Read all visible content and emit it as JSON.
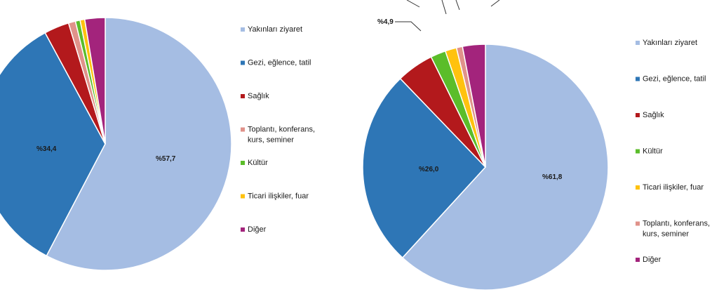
{
  "colors": {
    "yakinlari_ziyaret": "#a5bde3",
    "gezi": "#2e76b6",
    "saglik": "#b3191c",
    "toplanti": "#e0928a",
    "kultur": "#5bbd2a",
    "ticari": "#ffc20e",
    "diger": "#a3247c"
  },
  "chart_data": [
    {
      "type": "pie",
      "slices": [
        {
          "label": "Yakınları ziyaret",
          "value": 57.7,
          "color_key": "yakinlari_ziyaret",
          "data_label": "%57,7"
        },
        {
          "label": "Gezi, eğlence, tatil",
          "value": 34.4,
          "color_key": "gezi",
          "data_label": "%34,4"
        },
        {
          "label": "Sağlık",
          "value": 3.2,
          "color_key": "saglik",
          "data_label": ""
        },
        {
          "label": "Toplantı, konferans, kurs, seminer",
          "value": 0.9,
          "color_key": "toplanti",
          "data_label": ""
        },
        {
          "label": "Kültür",
          "value": 0.6,
          "color_key": "kultur",
          "data_label": ""
        },
        {
          "label": "Ticari ilişkiler, fuar",
          "value": 0.6,
          "color_key": "ticari",
          "data_label": ""
        },
        {
          "label": "Diğer",
          "value": 2.6,
          "color_key": "diger",
          "data_label": ""
        }
      ],
      "legend": {
        "placement": "right",
        "items": [
          {
            "label_lines": [
              "Yakınları ziyaret"
            ],
            "color_key": "yakinlari_ziyaret"
          },
          {
            "label_lines": [
              "Gezi, eğlence, tatil"
            ],
            "color_key": "gezi"
          },
          {
            "label_lines": [
              "Sağlık"
            ],
            "color_key": "saglik"
          },
          {
            "label_lines": [
              "Toplantı, konferans,",
              "kurs, seminer"
            ],
            "color_key": "toplanti"
          },
          {
            "label_lines": [
              "Kültür"
            ],
            "color_key": "kultur"
          },
          {
            "label_lines": [
              "Ticari ilişkiler, fuar"
            ],
            "color_key": "ticari"
          },
          {
            "label_lines": [
              "Diğer"
            ],
            "color_key": "diger"
          }
        ]
      }
    },
    {
      "type": "pie",
      "slices": [
        {
          "label": "Yakınları ziyaret",
          "value": 61.8,
          "color_key": "yakinlari_ziyaret",
          "data_label": "%61,8"
        },
        {
          "label": "Gezi, eğlence, tatil",
          "value": 26.0,
          "color_key": "gezi",
          "data_label": "%26,0"
        },
        {
          "label": "Sağlık",
          "value": 4.9,
          "color_key": "saglik",
          "data_label": "%4,9"
        },
        {
          "label": "Kültür",
          "value": 2.0,
          "color_key": "kultur",
          "data_label": ""
        },
        {
          "label": "Ticari ilişkiler, fuar",
          "value": 1.5,
          "color_key": "ticari",
          "data_label": ""
        },
        {
          "label": "Toplantı, konferans, kurs, seminer",
          "value": 0.8,
          "color_key": "toplanti",
          "data_label": ""
        },
        {
          "label": "Diğer",
          "value": 3.0,
          "color_key": "diger",
          "data_label": ""
        }
      ],
      "legend": {
        "placement": "right",
        "items": [
          {
            "label_lines": [
              "Yakınları ziyaret"
            ],
            "color_key": "yakinlari_ziyaret"
          },
          {
            "label_lines": [
              "Gezi, eğlence, tatil"
            ],
            "color_key": "gezi"
          },
          {
            "label_lines": [
              "Sağlık"
            ],
            "color_key": "saglik"
          },
          {
            "label_lines": [
              "Kültür"
            ],
            "color_key": "kultur"
          },
          {
            "label_lines": [
              "Ticari ilişkiler, fuar"
            ],
            "color_key": "ticari"
          },
          {
            "label_lines": [
              "Toplantı, konferans,",
              "kurs, seminer"
            ],
            "color_key": "toplanti"
          },
          {
            "label_lines": [
              "Diğer"
            ],
            "color_key": "diger"
          }
        ]
      }
    }
  ]
}
